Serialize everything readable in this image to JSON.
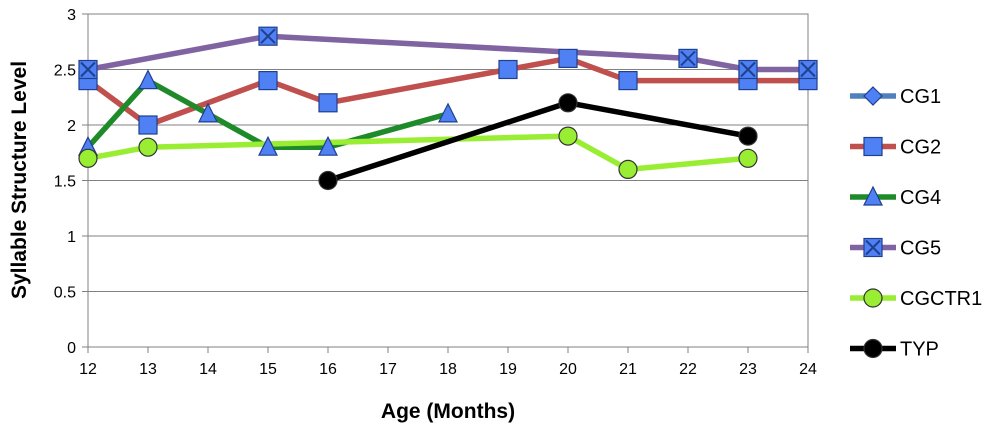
{
  "chart_data": {
    "type": "line",
    "xlabel": "Age (Months)",
    "ylabel": "Syllable Structure Level",
    "xlim": [
      12,
      24
    ],
    "ylim": [
      0,
      3
    ],
    "x_ticks": [
      "12",
      "13",
      "14",
      "15",
      "16",
      "17",
      "18",
      "19",
      "20",
      "21",
      "22",
      "23",
      "24"
    ],
    "y_ticks": [
      "0",
      "0.5",
      "1",
      "1.5",
      "2",
      "2.5",
      "3"
    ],
    "grid": "horizontal",
    "legend_position": "right",
    "series": [
      {
        "name": "CG1",
        "color": "#4f81bd",
        "marker": "diamond",
        "points": []
      },
      {
        "name": "CG2",
        "color": "#c0504d",
        "marker": "square",
        "points": [
          [
            12,
            2.4
          ],
          [
            13,
            2.0
          ],
          [
            15,
            2.4
          ],
          [
            16,
            2.2
          ],
          [
            19,
            2.5
          ],
          [
            20,
            2.6
          ],
          [
            21,
            2.4
          ],
          [
            23,
            2.4
          ],
          [
            24,
            2.4
          ]
        ]
      },
      {
        "name": "CG4",
        "color": "#1e8a2a",
        "marker": "triangle",
        "points": [
          [
            12,
            1.8
          ],
          [
            13,
            2.4
          ],
          [
            14,
            2.1
          ],
          [
            15,
            1.8
          ],
          [
            16,
            1.8
          ],
          [
            18,
            2.1
          ]
        ]
      },
      {
        "name": "CG5",
        "color": "#8064a2",
        "marker": "x",
        "points": [
          [
            12,
            2.5
          ],
          [
            15,
            2.8
          ],
          [
            22,
            2.6
          ],
          [
            23,
            2.5
          ],
          [
            24,
            2.5
          ]
        ]
      },
      {
        "name": "CGCTR1",
        "color": "#99ee33",
        "marker": "circle",
        "points": [
          [
            12,
            1.7
          ],
          [
            13,
            1.8
          ],
          [
            20,
            1.9
          ],
          [
            21,
            1.6
          ],
          [
            23,
            1.7
          ]
        ]
      },
      {
        "name": "TYP",
        "color": "#000000",
        "marker": "circle",
        "points": [
          [
            16,
            1.5
          ],
          [
            20,
            2.2
          ],
          [
            23,
            1.9
          ]
        ]
      }
    ]
  }
}
